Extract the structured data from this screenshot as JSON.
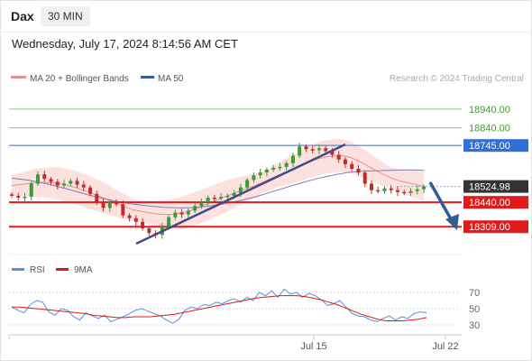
{
  "header": {
    "symbol": "Dax",
    "timeframe": "30 MIN",
    "datetime": "Wednesday, July 17, 2024 8:14:56 AM CET"
  },
  "legend": {
    "ma20_label": "MA 20 + Bollinger Bands",
    "ma50_label": "MA 50",
    "credit": "Research © 2024 Trading Central"
  },
  "rsi_legend": {
    "rsi_label": "RSI",
    "ma9_label": "9MA"
  },
  "colors": {
    "green_levels": "#8dc96a",
    "resistance_blue": "#2f6fd6",
    "support_red": "#e01b1b",
    "current_price": "#333333",
    "ma20": "#e88f8f",
    "ma50": "#7a80b8",
    "bollinger_fill": "#fbd7d4",
    "trendline": "#3d4d8a",
    "arrow": "#2f5e93",
    "rsi": "#5b8ed8",
    "rsi_ma": "#d81b1b"
  },
  "chart_data": [
    {
      "type": "candlestick",
      "title": "",
      "ylim": [
        18160,
        19080
      ],
      "x_ticks": [
        "Jul 15",
        "Jul 22"
      ],
      "levels": [
        {
          "value": 18940.0,
          "label": "18940.00",
          "kind": "target"
        },
        {
          "value": 18840.0,
          "label": "18840.00",
          "kind": "target"
        },
        {
          "value": 18745.0,
          "label": "18745.00",
          "kind": "resistance"
        },
        {
          "value": 18524.98,
          "label": "18524.98",
          "kind": "current"
        },
        {
          "value": 18440.0,
          "label": "18440.00",
          "kind": "support"
        },
        {
          "value": 18309.0,
          "label": "18309.00",
          "kind": "support"
        }
      ],
      "close": [
        18475,
        18465,
        18470,
        18540,
        18590,
        18565,
        18550,
        18530,
        18540,
        18555,
        18535,
        18520,
        18485,
        18440,
        18410,
        18440,
        18430,
        18370,
        18355,
        18335,
        18300,
        18275,
        18265,
        18310,
        18360,
        18385,
        18375,
        18395,
        18420,
        18440,
        18465,
        18460,
        18470,
        18475,
        18490,
        18520,
        18560,
        18585,
        18600,
        18615,
        18625,
        18630,
        18650,
        18690,
        18740,
        18725,
        18720,
        18730,
        18715,
        18695,
        18670,
        18645,
        18620,
        18600,
        18540,
        18505,
        18500,
        18515,
        18505,
        18495,
        18490,
        18500,
        18510,
        18525
      ],
      "ma20": [
        18530,
        18536,
        18540,
        18545,
        18547,
        18545,
        18540,
        18530,
        18518,
        18503,
        18487,
        18470,
        18453,
        18433,
        18415,
        18400,
        18392,
        18384,
        18377,
        18374,
        18376,
        18383,
        18395,
        18410,
        18427,
        18445,
        18463,
        18480,
        18497,
        18512,
        18528,
        18546,
        18566,
        18586,
        18605,
        18622,
        18640,
        18660,
        18675,
        18684,
        18690,
        18690,
        18680,
        18660,
        18637,
        18612,
        18590,
        18570,
        18555,
        18545,
        18535,
        18527
      ],
      "ma50": [
        18570,
        18560,
        18545,
        18525,
        18503,
        18480,
        18460,
        18443,
        18430,
        18420,
        18413,
        18410,
        18412,
        18420,
        18433,
        18450,
        18470,
        18495,
        18520,
        18545,
        18567,
        18585,
        18600,
        18607,
        18610,
        18612,
        18614,
        18612
      ]
    },
    {
      "type": "line",
      "title": "RSI",
      "ylim": [
        22,
        78
      ],
      "y_ticks": [
        70,
        50,
        30
      ],
      "series": [
        {
          "name": "RSI",
          "values": [
            52,
            48,
            45,
            55,
            60,
            58,
            46,
            42,
            50,
            48,
            40,
            36,
            45,
            41,
            38,
            42,
            34,
            37,
            40,
            44,
            48,
            50,
            47,
            44,
            41,
            36,
            32,
            37,
            48,
            52,
            50,
            55,
            54,
            58,
            56,
            60,
            62,
            58,
            64,
            60,
            70,
            66,
            72,
            64,
            74,
            68,
            70,
            64,
            69,
            66,
            61,
            54,
            56,
            60,
            52,
            44,
            41,
            40,
            36,
            34,
            38,
            41,
            36,
            40,
            38,
            44,
            46,
            45
          ]
        },
        {
          "name": "9MA",
          "values": [
            52,
            52,
            51,
            50,
            49,
            48,
            47,
            46,
            45,
            44,
            42,
            41,
            40,
            39,
            39,
            40,
            40,
            40,
            41,
            42,
            43,
            45,
            47,
            49,
            51,
            53,
            55,
            57,
            59,
            61,
            63,
            64,
            65,
            66,
            66,
            66,
            65,
            63,
            61,
            58,
            55,
            51,
            47,
            43,
            40,
            37,
            35,
            35,
            35,
            36,
            37,
            39
          ]
        }
      ]
    }
  ]
}
